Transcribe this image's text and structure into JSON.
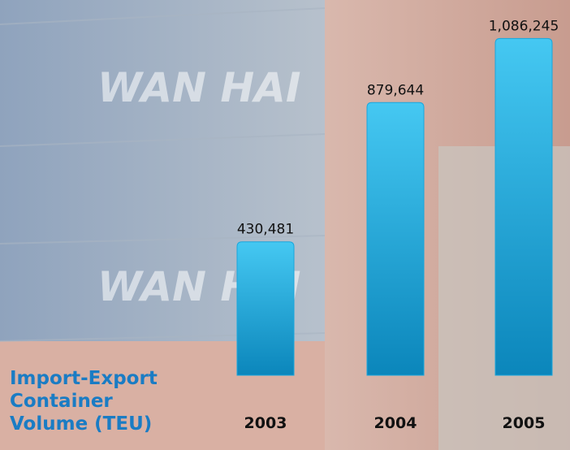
{
  "chart_data": {
    "type": "bar",
    "title": "Import-Export Container Volume (TEU)",
    "categories": [
      "2003",
      "2004",
      "2005"
    ],
    "values": [
      430481,
      879644,
      1086245
    ],
    "value_labels": [
      "430,481",
      "879,644",
      "1,086,245"
    ],
    "color": "#19a6dc",
    "ylim": [
      0,
      1200000
    ]
  }
}
